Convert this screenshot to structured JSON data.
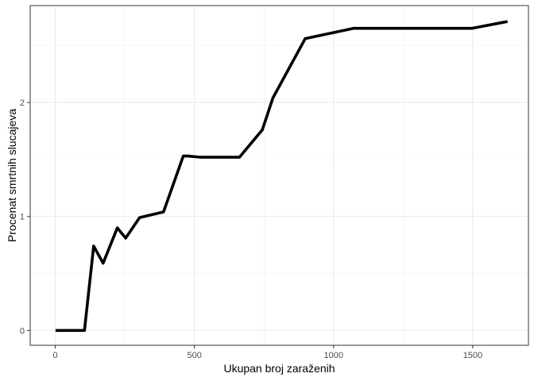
{
  "chart_data": {
    "type": "line",
    "title": "",
    "xlabel": "Ukupan broj zaraženih",
    "ylabel": "Procenat smrtnih slucajeva",
    "xlim": [
      -90,
      1700
    ],
    "ylim": [
      -0.13,
      2.85
    ],
    "x_ticks": [
      0,
      500,
      1000,
      1500
    ],
    "x_tick_labels": [
      "0",
      "500",
      "1000",
      "1500"
    ],
    "y_ticks": [
      0,
      1,
      2
    ],
    "y_tick_labels": [
      "0",
      "1",
      "2"
    ],
    "grid": true,
    "legend": "none",
    "series": [
      {
        "color": "#000000",
        "x": [
          1,
          105,
          138,
          172,
          223,
          253,
          303,
          389,
          460,
          476,
          520,
          662,
          744,
          782,
          898,
          1071,
          1496,
          1625
        ],
        "y": [
          0,
          0,
          0.74,
          0.59,
          0.9,
          0.81,
          0.99,
          1.04,
          1.53,
          1.53,
          1.52,
          1.52,
          1.76,
          2.04,
          2.56,
          2.65,
          2.65,
          2.71
        ]
      }
    ]
  }
}
